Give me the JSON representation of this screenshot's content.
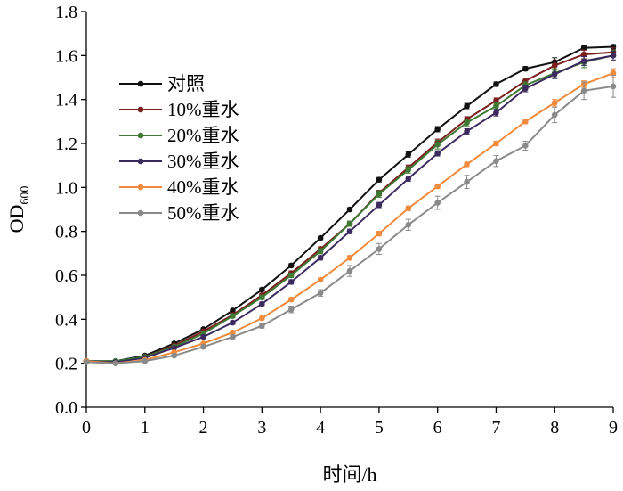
{
  "chart_data": {
    "type": "line",
    "xlabel": "时间/h",
    "ylabel": "OD",
    "ylabel_sub": "600",
    "xlim": [
      0,
      9
    ],
    "ylim": [
      0.0,
      1.8
    ],
    "xticks": [
      "0",
      "1",
      "2",
      "3",
      "4",
      "5",
      "6",
      "7",
      "8",
      "9"
    ],
    "yticks": [
      "0.0",
      "0.2",
      "0.4",
      "0.6",
      "0.8",
      "1.0",
      "1.2",
      "1.4",
      "1.6",
      "1.8"
    ],
    "grid": false,
    "legend_position": "top-left",
    "x": [
      0,
      0.5,
      1,
      1.5,
      2,
      2.5,
      3,
      3.5,
      4,
      4.5,
      5,
      5.5,
      6,
      6.5,
      7,
      7.5,
      8,
      8.5,
      9
    ],
    "series": [
      {
        "name": "对照",
        "color": "#111111",
        "values": [
          0.21,
          0.21,
          0.235,
          0.29,
          0.355,
          0.44,
          0.535,
          0.645,
          0.77,
          0.9,
          1.035,
          1.15,
          1.265,
          1.37,
          1.47,
          1.54,
          1.57,
          1.635,
          1.64
        ],
        "errors": [
          0.005,
          0.005,
          0.005,
          0.005,
          0.005,
          0.005,
          0.008,
          0.008,
          0.008,
          0.008,
          0.01,
          0.012,
          0.012,
          0.012,
          0.01,
          0.01,
          0.02,
          0.01,
          0.01
        ]
      },
      {
        "name": "10%重水",
        "color": "#7b1f1f",
        "values": [
          0.21,
          0.205,
          0.23,
          0.28,
          0.345,
          0.42,
          0.51,
          0.61,
          0.72,
          0.835,
          0.975,
          1.09,
          1.205,
          1.31,
          1.395,
          1.485,
          1.555,
          1.605,
          1.615
        ],
        "errors": [
          0.005,
          0.005,
          0.005,
          0.005,
          0.005,
          0.008,
          0.008,
          0.01,
          0.01,
          0.01,
          0.012,
          0.012,
          0.015,
          0.012,
          0.012,
          0.012,
          0.02,
          0.02,
          0.02
        ]
      },
      {
        "name": "20%重水",
        "color": "#3f7a34",
        "values": [
          0.21,
          0.21,
          0.23,
          0.275,
          0.335,
          0.415,
          0.5,
          0.6,
          0.71,
          0.835,
          0.97,
          1.08,
          1.195,
          1.295,
          1.37,
          1.465,
          1.52,
          1.57,
          1.6
        ],
        "errors": [
          0.005,
          0.005,
          0.005,
          0.005,
          0.008,
          0.008,
          0.01,
          0.01,
          0.012,
          0.012,
          0.015,
          0.015,
          0.02,
          0.015,
          0.015,
          0.015,
          0.02,
          0.025,
          0.025
        ]
      },
      {
        "name": "30%重水",
        "color": "#3b2a5e",
        "values": [
          0.21,
          0.205,
          0.225,
          0.27,
          0.32,
          0.385,
          0.47,
          0.57,
          0.68,
          0.8,
          0.92,
          1.04,
          1.155,
          1.255,
          1.34,
          1.45,
          1.515,
          1.575,
          1.6
        ],
        "errors": [
          0.005,
          0.005,
          0.005,
          0.005,
          0.005,
          0.008,
          0.008,
          0.01,
          0.01,
          0.01,
          0.012,
          0.012,
          0.012,
          0.012,
          0.015,
          0.015,
          0.02,
          0.02,
          0.02
        ]
      },
      {
        "name": "40%重水",
        "color": "#f08a3c",
        "values": [
          0.21,
          0.2,
          0.215,
          0.25,
          0.29,
          0.34,
          0.405,
          0.49,
          0.58,
          0.68,
          0.79,
          0.905,
          1.005,
          1.105,
          1.2,
          1.3,
          1.385,
          1.47,
          1.52
        ],
        "errors": [
          0.005,
          0.005,
          0.005,
          0.005,
          0.005,
          0.005,
          0.008,
          0.008,
          0.008,
          0.01,
          0.01,
          0.01,
          0.01,
          0.01,
          0.01,
          0.01,
          0.015,
          0.015,
          0.02
        ]
      },
      {
        "name": "50%重水",
        "color": "#8a8a8a",
        "values": [
          0.205,
          0.2,
          0.21,
          0.235,
          0.275,
          0.32,
          0.37,
          0.445,
          0.52,
          0.62,
          0.72,
          0.83,
          0.93,
          1.025,
          1.12,
          1.19,
          1.33,
          1.44,
          1.46
        ],
        "errors": [
          0.005,
          0.005,
          0.005,
          0.005,
          0.008,
          0.008,
          0.01,
          0.015,
          0.015,
          0.025,
          0.025,
          0.025,
          0.03,
          0.03,
          0.025,
          0.02,
          0.035,
          0.04,
          0.05
        ]
      }
    ]
  }
}
